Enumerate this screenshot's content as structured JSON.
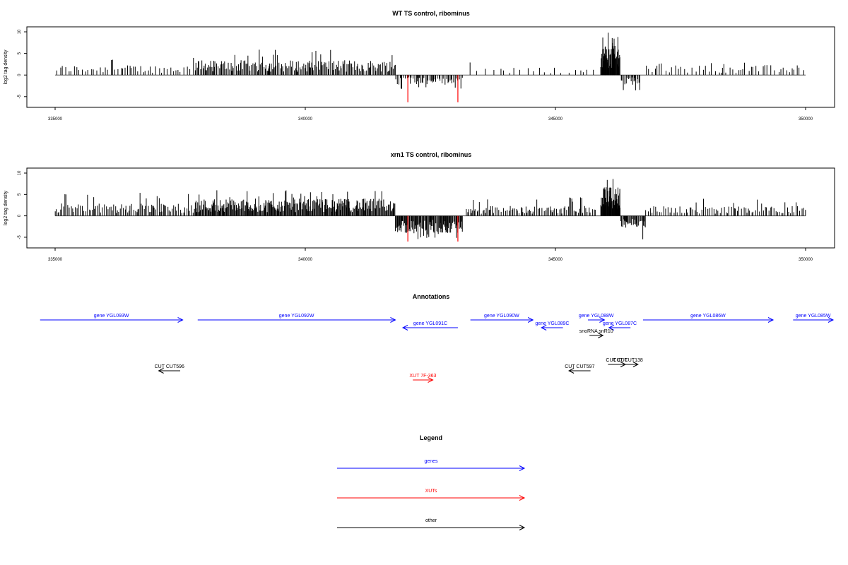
{
  "colors": {
    "gene": "#0000ff",
    "xut": "#ff0000",
    "other": "#000000",
    "axis": "#000000",
    "baseline": "#555555"
  },
  "chart_data": [
    {
      "type": "bar",
      "title": "WT TS control, ribominus",
      "ylabel": "log2 tag density",
      "xlim": [
        335000,
        350000
      ],
      "ylim": [
        -6.5,
        10.5
      ],
      "xticks": [
        335000,
        340000,
        345000,
        350000
      ],
      "yticks": [
        -5,
        0,
        5,
        10
      ],
      "density_profile": [
        {
          "range": [
            335000,
            337800
          ],
          "sign": 1,
          "typical": 2.0,
          "max": 4.5,
          "spacing": 50
        },
        {
          "range": [
            337800,
            341800
          ],
          "sign": 1,
          "typical": 3.0,
          "max": 6.0,
          "spacing": 22
        },
        {
          "range": [
            341800,
            343150
          ],
          "sign": -1,
          "typical": 2.0,
          "max": 4.0,
          "spacing": 28
        },
        {
          "range": [
            343200,
            345800
          ],
          "sign": 1,
          "typical": 1.5,
          "max": 3.0,
          "spacing": 110
        },
        {
          "range": [
            345900,
            346300
          ],
          "sign": 1,
          "typical": 6.0,
          "max": 10.0,
          "spacing": 8
        },
        {
          "range": [
            346300,
            346700
          ],
          "sign": -1,
          "typical": 2.0,
          "max": 4.0,
          "spacing": 20
        },
        {
          "range": [
            346800,
            350000
          ],
          "sign": 1,
          "typical": 2.0,
          "max": 3.0,
          "spacing": 60
        }
      ],
      "highlight_bars": [
        {
          "x": 342050,
          "y": -6.3,
          "color": "#ff0000"
        },
        {
          "x": 343050,
          "y": -6.3,
          "color": "#ff0000"
        }
      ]
    },
    {
      "type": "bar",
      "title": "xrn1 TS control, ribominus",
      "ylabel": "log2 tag density",
      "xlim": [
        335000,
        350000
      ],
      "ylim": [
        -6.5,
        10.5
      ],
      "xticks": [
        335000,
        340000,
        345000,
        350000
      ],
      "yticks": [
        -5,
        0,
        5,
        10
      ],
      "density_profile": [
        {
          "range": [
            335000,
            337800
          ],
          "sign": 1,
          "typical": 2.5,
          "max": 5.5,
          "spacing": 30
        },
        {
          "range": [
            337800,
            341800
          ],
          "sign": 1,
          "typical": 3.5,
          "max": 6.0,
          "spacing": 14
        },
        {
          "range": [
            341800,
            343150
          ],
          "sign": -1,
          "typical": 3.5,
          "max": 5.5,
          "spacing": 14
        },
        {
          "range": [
            343200,
            345800
          ],
          "sign": 1,
          "typical": 2.0,
          "max": 4.5,
          "spacing": 30
        },
        {
          "range": [
            345900,
            346300
          ],
          "sign": 1,
          "typical": 6.0,
          "max": 9.5,
          "spacing": 8
        },
        {
          "range": [
            346300,
            346800
          ],
          "sign": -1,
          "typical": 2.5,
          "max": 6.5,
          "spacing": 16
        },
        {
          "range": [
            346800,
            350000
          ],
          "sign": 1,
          "typical": 2.0,
          "max": 4.0,
          "spacing": 35
        }
      ],
      "highlight_bars": [
        {
          "x": 342050,
          "y": -6.0,
          "color": "#ff0000"
        },
        {
          "x": 343050,
          "y": -6.0,
          "color": "#ff0000"
        }
      ]
    }
  ],
  "annotations": {
    "title": "Annotations",
    "features": [
      {
        "label": "gene YGL093W",
        "type": "gene",
        "start": 334700,
        "end": 337550,
        "strand": "+",
        "row": 0
      },
      {
        "label": "gene YGL092W",
        "type": "gene",
        "start": 337850,
        "end": 341800,
        "strand": "+",
        "row": 0
      },
      {
        "label": "gene YGL091C",
        "type": "gene",
        "start": 341950,
        "end": 343050,
        "strand": "-",
        "row": 1
      },
      {
        "label": "gene YGL090W",
        "type": "gene",
        "start": 343300,
        "end": 344550,
        "strand": "+",
        "row": 0
      },
      {
        "label": "gene YGL089C",
        "type": "gene",
        "start": 344720,
        "end": 345150,
        "strand": "-",
        "row": 1
      },
      {
        "label": "gene YGL088W",
        "type": "gene",
        "start": 345650,
        "end": 345980,
        "strand": "+",
        "row": 0
      },
      {
        "label": "gene YGL087C",
        "type": "gene",
        "start": 346070,
        "end": 346500,
        "strand": "-",
        "row": 1
      },
      {
        "label": "snoRNA snR10",
        "type": "other",
        "start": 345680,
        "end": 345950,
        "strand": "+",
        "row": 2
      },
      {
        "label": "gene YGL086W",
        "type": "gene",
        "start": 346750,
        "end": 349350,
        "strand": "+",
        "row": 0
      },
      {
        "label": "gene YGL085W",
        "type": "gene",
        "start": 349750,
        "end": 350550,
        "strand": "+",
        "row": 0
      },
      {
        "label": "CUT CUT596",
        "type": "other",
        "start": 337070,
        "end": 337500,
        "strand": "-",
        "row": 4
      },
      {
        "label": "CUT CUT597",
        "type": "other",
        "start": 345270,
        "end": 345700,
        "strand": "-",
        "row": 4
      },
      {
        "label": "CUT CUT",
        "type": "other",
        "start": 346050,
        "end": 346400,
        "strand": "+",
        "row": 3
      },
      {
        "label": "CUT CUT138",
        "type": "other",
        "start": 346250,
        "end": 346650,
        "strand": "+",
        "row": 3
      },
      {
        "label": "XUT 7F-363",
        "type": "xut",
        "start": 342150,
        "end": 342550,
        "strand": "+",
        "row": 5
      }
    ]
  },
  "legend": {
    "title": "Legend",
    "items": [
      {
        "label": "genes",
        "color": "#0000ff"
      },
      {
        "label": "XUTs",
        "color": "#ff0000"
      },
      {
        "label": "other",
        "color": "#000000"
      }
    ]
  }
}
